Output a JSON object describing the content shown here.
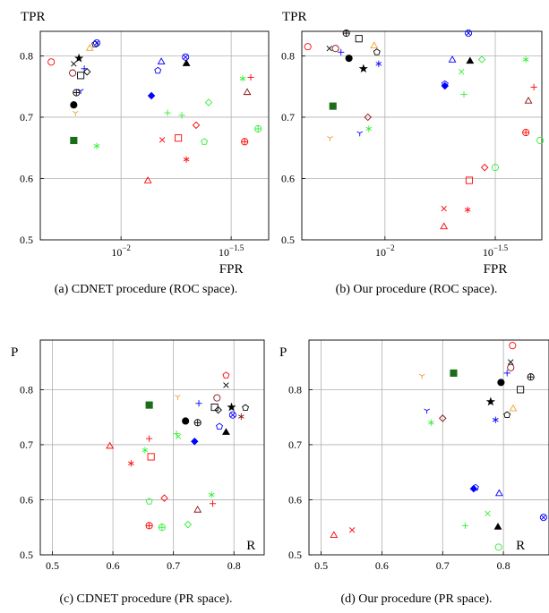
{
  "chart_data": [
    {
      "type": "scatter",
      "caption": "(a) CDNET procedure (ROC space).",
      "ylabel": "TPR",
      "xlabel": "FPR",
      "xlog": true,
      "grid": true,
      "xlim": [
        0.0043,
        0.0468
      ],
      "ylim": [
        0.5,
        0.84
      ],
      "xticks": [
        {
          "value": 0.01,
          "label": "10",
          "exponent": "−2"
        },
        {
          "value": 0.0316228,
          "label": "10",
          "exponent": "−1.5"
        }
      ],
      "yticks": [
        0.5,
        0.6,
        0.7,
        0.8
      ],
      "x": [
        0.00482,
        0.0061,
        0.00603,
        0.00621,
        0.0061,
        0.00627,
        0.0061,
        0.00681,
        0.00656,
        0.00656,
        0.00644,
        0.00701,
        0.00721,
        0.00762,
        0.00776,
        0.00776,
        0.01524,
        0.01469,
        0.01963,
        0.0198,
        0.01374,
        0.01626,
        0.01888,
        0.025,
        0.02193,
        0.01538,
        0.0182,
        0.02387,
        0.0198,
        0.01324,
        0.0357,
        0.0388,
        0.0374,
        0.0364,
        0.0419
      ],
      "y": [
        0.79,
        0.787,
        0.772,
        0.707,
        0.662,
        0.74,
        0.72,
        0.779,
        0.743,
        0.768,
        0.796,
        0.774,
        0.812,
        0.819,
        0.821,
        0.653,
        0.79,
        0.776,
        0.798,
        0.787,
        0.735,
        0.707,
        0.703,
        0.724,
        0.687,
        0.663,
        0.666,
        0.66,
        0.631,
        0.596,
        0.763,
        0.765,
        0.74,
        0.66,
        0.681
      ],
      "markers": [
        "circle",
        "cross",
        "circle",
        "tri_down",
        "square_f",
        "oplus",
        "circle_f",
        "plus",
        "tri_down",
        "square",
        "star",
        "diamond",
        "triangle",
        "pentagon",
        "otimes",
        "asterisk",
        "triangle",
        "pentagon",
        "otimes",
        "triangle_f",
        "diamond_f",
        "plus",
        "plus",
        "diamond",
        "diamond",
        "cross",
        "square",
        "pentagon",
        "asterisk",
        "triangle",
        "asterisk",
        "plus",
        "triangle",
        "oplus",
        "oplus"
      ],
      "colors": [
        "#ff0000",
        "#000000",
        "#8b1010",
        "#f0a030",
        "#1a6e1a",
        "#000000",
        "#000000",
        "#0000ff",
        "#0000ff",
        "#000000",
        "#000000",
        "#000000",
        "#f0a030",
        "#000000",
        "#0000ff",
        "#33ee33",
        "#0000ff",
        "#0000ff",
        "#0000ff",
        "#000000",
        "#0000ff",
        "#33ee33",
        "#33ee33",
        "#33ee33",
        "#ff0000",
        "#ff0000",
        "#ff0000",
        "#33ee33",
        "#ff0000",
        "#ff0000",
        "#33ee33",
        "#ff0000",
        "#8b1010",
        "#ff0000",
        "#33ee33"
      ]
    },
    {
      "type": "scatter",
      "caption": "(b) Our procedure (ROC space).",
      "ylabel": "TPR",
      "xlabel": "FPR",
      "xlog": true,
      "grid": true,
      "xlim": [
        0.0042,
        0.0514
      ],
      "ylim": [
        0.5,
        0.84
      ],
      "xticks": [
        {
          "value": 0.01,
          "label": "10",
          "exponent": "−2"
        },
        {
          "value": 0.0316228,
          "label": "10",
          "exponent": "−1.5"
        }
      ],
      "yticks": [
        0.5,
        0.6,
        0.7,
        0.8
      ],
      "x": [
        0.00447,
        0.0056,
        0.00597,
        0.00632,
        0.00668,
        0.00687,
        0.00762,
        0.00893,
        0.00919,
        0.00937,
        0.00799,
        0.00581,
        0.00564,
        0.00837,
        0.00845,
        0.00769,
        0.0239,
        0.0202,
        0.0187,
        0.0187,
        0.0222,
        0.0243,
        0.0275,
        0.0228,
        0.0435,
        0.0473,
        0.0447,
        0.0435,
        0.0505,
        0.0283,
        0.0316,
        0.0241,
        0.0185,
        0.0237,
        0.0185
      ],
      "y": [
        0.815,
        0.812,
        0.812,
        0.806,
        0.837,
        0.796,
        0.828,
        0.816,
        0.806,
        0.787,
        0.779,
        0.718,
        0.666,
        0.7,
        0.681,
        0.674,
        0.837,
        0.793,
        0.754,
        0.751,
        0.774,
        0.791,
        0.794,
        0.737,
        0.794,
        0.749,
        0.726,
        0.675,
        0.662,
        0.618,
        0.618,
        0.597,
        0.551,
        0.549,
        0.521
      ],
      "markers": [
        "circle",
        "cross",
        "circle",
        "plus",
        "oplus",
        "circle_f",
        "square",
        "triangle",
        "pentagon",
        "asterisk",
        "star",
        "square_f",
        "tri_down",
        "diamond",
        "asterisk",
        "tri_down",
        "otimes",
        "triangle",
        "pentagon",
        "diamond_f",
        "cross",
        "triangle_f",
        "diamond",
        "plus",
        "asterisk",
        "plus",
        "triangle",
        "oplus",
        "circle",
        "diamond",
        "circle",
        "square",
        "cross",
        "asterisk",
        "triangle"
      ],
      "colors": [
        "#ff0000",
        "#000000",
        "#8b1010",
        "#0000ff",
        "#000000",
        "#000000",
        "#000000",
        "#f0a030",
        "#000000",
        "#0000ff",
        "#000000",
        "#1a6e1a",
        "#f0a030",
        "#8b1010",
        "#33ee33",
        "#0000ff",
        "#0000ff",
        "#0000ff",
        "#0000ff",
        "#0000ff",
        "#33ee33",
        "#000000",
        "#33ee33",
        "#33ee33",
        "#33ee33",
        "#ff0000",
        "#8b1010",
        "#ff0000",
        "#33ee33",
        "#ff0000",
        "#33ee33",
        "#ff0000",
        "#ff0000",
        "#ff0000",
        "#ff0000"
      ]
    },
    {
      "type": "scatter",
      "caption": "(c) CDNET procedure (PR space).",
      "ylabel": "P",
      "xlabel": "R",
      "xlog": false,
      "grid": true,
      "xlim": [
        0.48,
        0.85
      ],
      "ylim": [
        0.5,
        0.89
      ],
      "xticks": [
        0.5,
        0.6,
        0.7,
        0.8
      ],
      "yticks": [
        0.5,
        0.6,
        0.7,
        0.8
      ],
      "x": [
        0.595,
        0.653,
        0.66,
        0.63,
        0.66,
        0.663,
        0.66,
        0.685,
        0.66,
        0.681,
        0.707,
        0.705,
        0.708,
        0.72,
        0.74,
        0.735,
        0.724,
        0.74,
        0.742,
        0.768,
        0.772,
        0.774,
        0.787,
        0.787,
        0.776,
        0.787,
        0.796,
        0.798,
        0.812,
        0.819,
        0.763,
        0.765
      ],
      "y": [
        0.697,
        0.69,
        0.711,
        0.666,
        0.772,
        0.678,
        0.597,
        0.603,
        0.553,
        0.55,
        0.787,
        0.72,
        0.715,
        0.743,
        0.74,
        0.706,
        0.555,
        0.581,
        0.775,
        0.768,
        0.785,
        0.763,
        0.826,
        0.808,
        0.733,
        0.722,
        0.768,
        0.754,
        0.751,
        0.767,
        0.609,
        0.593
      ],
      "markers": [
        "triangle",
        "asterisk",
        "plus",
        "asterisk",
        "square_f",
        "square",
        "pentagon",
        "diamond",
        "oplus",
        "oplus",
        "tri_down",
        "plus",
        "cross",
        "circle_f",
        "oplus",
        "diamond_f",
        "diamond",
        "triangle",
        "plus",
        "square",
        "circle",
        "diamond",
        "pentagon",
        "cross",
        "pentagon",
        "triangle_f",
        "star",
        "otimes",
        "asterisk",
        "pentagon",
        "asterisk",
        "plus"
      ],
      "colors": [
        "#ff0000",
        "#33ee33",
        "#ff0000",
        "#ff0000",
        "#1a6e1a",
        "#ff0000",
        "#33ee33",
        "#ff0000",
        "#ff0000",
        "#33ee33",
        "#f0a030",
        "#33ee33",
        "#33ee33",
        "#000000",
        "#000000",
        "#0000ff",
        "#33ee33",
        "#8b1010",
        "#0000ff",
        "#000000",
        "#8b1010",
        "#000000",
        "#ff0000",
        "#000000",
        "#0000ff",
        "#000000",
        "#000000",
        "#0000ff",
        "#8b1010",
        "#000000",
        "#33ee33",
        "#ff0000"
      ]
    },
    {
      "type": "scatter",
      "caption": "(d) Our procedure (PR space).",
      "ylabel": "P",
      "xlabel": "R",
      "xlog": false,
      "grid": true,
      "xlim": [
        0.48,
        0.875
      ],
      "ylim": [
        0.5,
        0.89
      ],
      "xticks": [
        0.5,
        0.6,
        0.7,
        0.8
      ],
      "yticks": [
        0.5,
        0.6,
        0.7,
        0.8
      ],
      "x": [
        0.521,
        0.551,
        0.666,
        0.674,
        0.7,
        0.681,
        0.718,
        0.737,
        0.754,
        0.751,
        0.774,
        0.793,
        0.791,
        0.792,
        0.779,
        0.787,
        0.796,
        0.806,
        0.816,
        0.806,
        0.812,
        0.812,
        0.815,
        0.828,
        0.845,
        0.866
      ],
      "y": [
        0.535,
        0.545,
        0.825,
        0.762,
        0.748,
        0.74,
        0.83,
        0.553,
        0.622,
        0.62,
        0.575,
        0.611,
        0.55,
        0.514,
        0.778,
        0.745,
        0.813,
        0.754,
        0.765,
        0.83,
        0.85,
        0.84,
        0.88,
        0.8,
        0.823,
        0.568
      ],
      "markers": [
        "triangle",
        "cross",
        "tri_down",
        "tri_down",
        "diamond",
        "asterisk",
        "square_f",
        "plus",
        "pentagon",
        "diamond_f",
        "cross",
        "triangle",
        "triangle_f",
        "circle",
        "star",
        "asterisk",
        "circle_f",
        "pentagon",
        "triangle",
        "plus",
        "cross",
        "circle",
        "circle",
        "square",
        "oplus",
        "otimes"
      ],
      "colors": [
        "#ff0000",
        "#ff0000",
        "#f0a030",
        "#0000ff",
        "#8b1010",
        "#33ee33",
        "#1a6e1a",
        "#33ee33",
        "#0000ff",
        "#0000ff",
        "#33ee33",
        "#0000ff",
        "#000000",
        "#33ee33",
        "#000000",
        "#0000ff",
        "#000000",
        "#000000",
        "#f0a030",
        "#0000ff",
        "#000000",
        "#8b1010",
        "#ff0000",
        "#000000",
        "#000000",
        "#0000ff"
      ]
    }
  ]
}
